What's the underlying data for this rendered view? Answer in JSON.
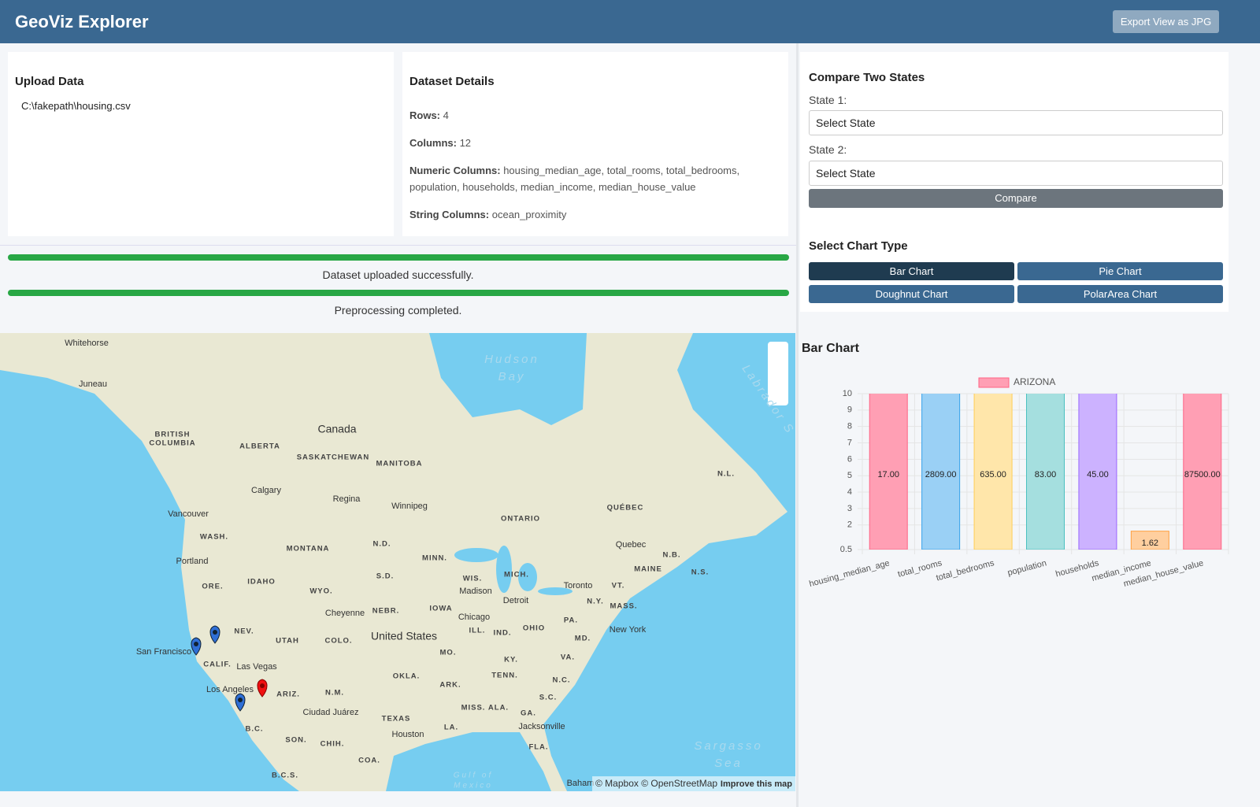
{
  "header": {
    "title": "GeoViz Explorer",
    "export_button": "Export View as JPG"
  },
  "upload": {
    "title": "Upload Data",
    "file": "C:\\fakepath\\housing.csv"
  },
  "dataset": {
    "title": "Dataset Details",
    "details": [
      {
        "label": "Rows:",
        "value": 4
      },
      {
        "label": "Columns:",
        "value": 12
      },
      {
        "label": "Numeric Columns:",
        "value": "housing_median_age, total_rooms, total_bedrooms, population, households, median_income, median_house_value"
      },
      {
        "label": "String Columns:",
        "value": "ocean_proximity"
      }
    ]
  },
  "status": [
    "Dataset uploaded successfully.",
    "Preprocessing completed."
  ],
  "compare": {
    "title": "Compare Two States",
    "state1_label": "State 1:",
    "state1_placeholder": "Select State",
    "state2_label": "State 2:",
    "state2_placeholder": "Select State",
    "button": "Compare"
  },
  "chart_type": {
    "title": "Select Chart Type",
    "buttons": [
      "Bar Chart",
      "Pie Chart",
      "Doughnut Chart",
      "PolarArea Chart"
    ]
  },
  "map": {
    "labels": [
      "Whitehorse",
      "Juneau",
      "BRITISH",
      "COLUMBIA",
      "Canada",
      "ALBERTA",
      "SASKATCHEWAN",
      "MANITOBA",
      "Calgary",
      "Regina",
      "Winnipeg",
      "Vancouver",
      "ONTARIO",
      "QUÉBEC",
      "N.L.",
      "WASH.",
      "MONTANA",
      "N.D.",
      "Quebec",
      "N.B.",
      "Portland",
      "MINN.",
      "MAINE",
      "N.S.",
      "ORE.",
      "IDAHO",
      "S.D.",
      "WIS.",
      "MICH.",
      "Madison",
      "Toronto",
      "VT.",
      "WYO.",
      "Detroit",
      "N.Y.",
      "MASS.",
      "Cheyenne",
      "NEBR.",
      "IOWA",
      "Chicago",
      "PA.",
      "NEV.",
      "UTAH",
      "COLO.",
      "United States",
      "ILL.",
      "IND.",
      "OHIO",
      "MD.",
      "New York",
      "San Francisco",
      "CALIF.",
      "Las Vegas",
      "MO.",
      "KY.",
      "VA.",
      "OKLA.",
      "TENN.",
      "N.C.",
      "Los Angeles",
      "ARIZ.",
      "N.M.",
      "ARK.",
      "S.C.",
      "Ciudad Juárez",
      "TEXAS",
      "MISS.",
      "ALA.",
      "GA.",
      "B.C.",
      "Jacksonville",
      "Houston",
      "LA.",
      "SON.",
      "CHIH.",
      "FLA.",
      "COA.",
      "B.C.S.",
      "Hudson",
      "Bay",
      "Sargasso",
      "Sea",
      "Gulf of",
      "Mexico",
      "Labrador S",
      "Baham"
    ],
    "attribution": "© Mapbox © OpenStreetMap",
    "improve": "Improve this map"
  },
  "chart_heading": "Bar Chart",
  "chart_data": {
    "type": "bar",
    "categories": [
      "housing_median_age",
      "total_rooms",
      "total_bedrooms",
      "population",
      "households",
      "median_income",
      "median_house_value"
    ],
    "series": [
      {
        "name": "ARIZONA",
        "color": "#ff9fb4",
        "colors": [
          "#ff9fb4",
          "#9ad0f5",
          "#ffe6aa",
          "#a5dfdf",
          "#ccb2ff",
          "#ffcf9f",
          "#ff9fb4"
        ],
        "border_colors": [
          "#ff6384",
          "#36a2eb",
          "#ffcd56",
          "#4bc0c0",
          "#9966ff",
          "#ff9f40",
          "#ff6384"
        ],
        "values": [
          17,
          2809,
          635,
          83,
          45,
          1.62,
          87500
        ],
        "value_labels": [
          "17.00",
          "2809.00",
          "635.00",
          "83.00",
          "45.00",
          "1.62",
          "87500.00"
        ]
      }
    ],
    "ylim": [
      0.5,
      10
    ],
    "yticks": [
      0.5,
      2,
      3,
      4,
      5,
      6,
      7,
      8,
      9,
      10
    ],
    "grid": true
  }
}
